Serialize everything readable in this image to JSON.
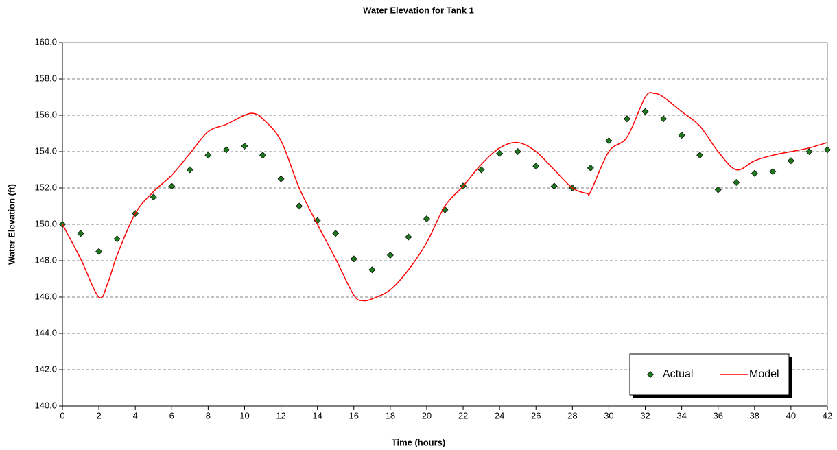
{
  "chart_data": {
    "type": "scatter",
    "title": "Water Elevation for Tank 1",
    "x_label": "Time (hours)",
    "y_label": "Water Elevation (ft)",
    "xlim": [
      0,
      42
    ],
    "xticks": [
      0,
      2,
      4,
      6,
      8,
      10,
      12,
      14,
      16,
      18,
      20,
      22,
      24,
      26,
      28,
      30,
      32,
      34,
      36,
      38,
      40,
      42
    ],
    "ylim": [
      140,
      160
    ],
    "yticks": [
      {
        "value": 140,
        "label": "140.0"
      },
      {
        "value": 142,
        "label": "142.0"
      },
      {
        "value": 144,
        "label": "144.0"
      },
      {
        "value": 146,
        "label": "146.0"
      },
      {
        "value": 148,
        "label": "148.0"
      },
      {
        "value": 150,
        "label": "150.0"
      },
      {
        "value": 152,
        "label": "152.0"
      },
      {
        "value": 154,
        "label": "154.0"
      },
      {
        "value": 156,
        "label": "156.0"
      },
      {
        "value": 158,
        "label": "158.0"
      },
      {
        "value": 160,
        "label": "160.0"
      }
    ],
    "grid": true,
    "legend": "lower right",
    "series": [
      {
        "name": "Actual",
        "color": "#1f7a1f",
        "style": "marker",
        "x": [
          0,
          1,
          2,
          3,
          4,
          5,
          6,
          7,
          8,
          9,
          10,
          11,
          12,
          13,
          14,
          15,
          16,
          17,
          18,
          19,
          20,
          21,
          22,
          23,
          24,
          25,
          26,
          27,
          28,
          29,
          30,
          31,
          32,
          33,
          34,
          35,
          36,
          37,
          38,
          39,
          40,
          41,
          42
        ],
        "values": [
          150.0,
          149.5,
          148.5,
          149.2,
          150.6,
          151.5,
          152.1,
          153.0,
          153.8,
          154.1,
          154.3,
          153.8,
          152.5,
          151.0,
          150.2,
          149.5,
          148.1,
          147.5,
          148.3,
          149.3,
          150.3,
          150.8,
          152.1,
          153.0,
          153.9,
          154.0,
          153.2,
          152.1,
          152.0,
          153.1,
          154.6,
          155.8,
          156.2,
          155.8,
          154.9,
          153.8,
          151.9,
          152.3,
          152.8,
          152.9,
          153.5,
          154.0,
          154.1
        ]
      },
      {
        "name": "Model",
        "color": "#ff0000",
        "style": "line",
        "x": [
          0,
          1,
          2,
          2.5,
          3,
          4,
          5,
          6,
          7,
          8,
          9,
          10,
          10.5,
          11,
          12,
          13,
          14,
          15,
          16,
          16.5,
          17,
          18,
          19,
          20,
          21,
          22,
          23,
          24,
          25,
          26,
          27,
          28,
          28.8,
          29,
          30,
          31,
          32,
          32.5,
          33,
          34,
          35,
          36,
          37,
          38,
          39,
          40,
          41,
          42
        ],
        "values": [
          150.0,
          148.1,
          146.0,
          146.8,
          148.3,
          150.6,
          151.8,
          152.7,
          153.9,
          155.1,
          155.5,
          156.0,
          156.1,
          155.8,
          154.6,
          152.0,
          150.0,
          148.1,
          146.1,
          145.8,
          145.9,
          146.4,
          147.5,
          149.0,
          151.0,
          152.1,
          153.3,
          154.2,
          154.5,
          154.0,
          153.0,
          152.0,
          151.7,
          151.8,
          154.0,
          154.8,
          157.0,
          157.2,
          157.0,
          156.2,
          155.4,
          154.0,
          153.0,
          153.5,
          153.8,
          154.0,
          154.2,
          154.5
        ]
      }
    ]
  }
}
